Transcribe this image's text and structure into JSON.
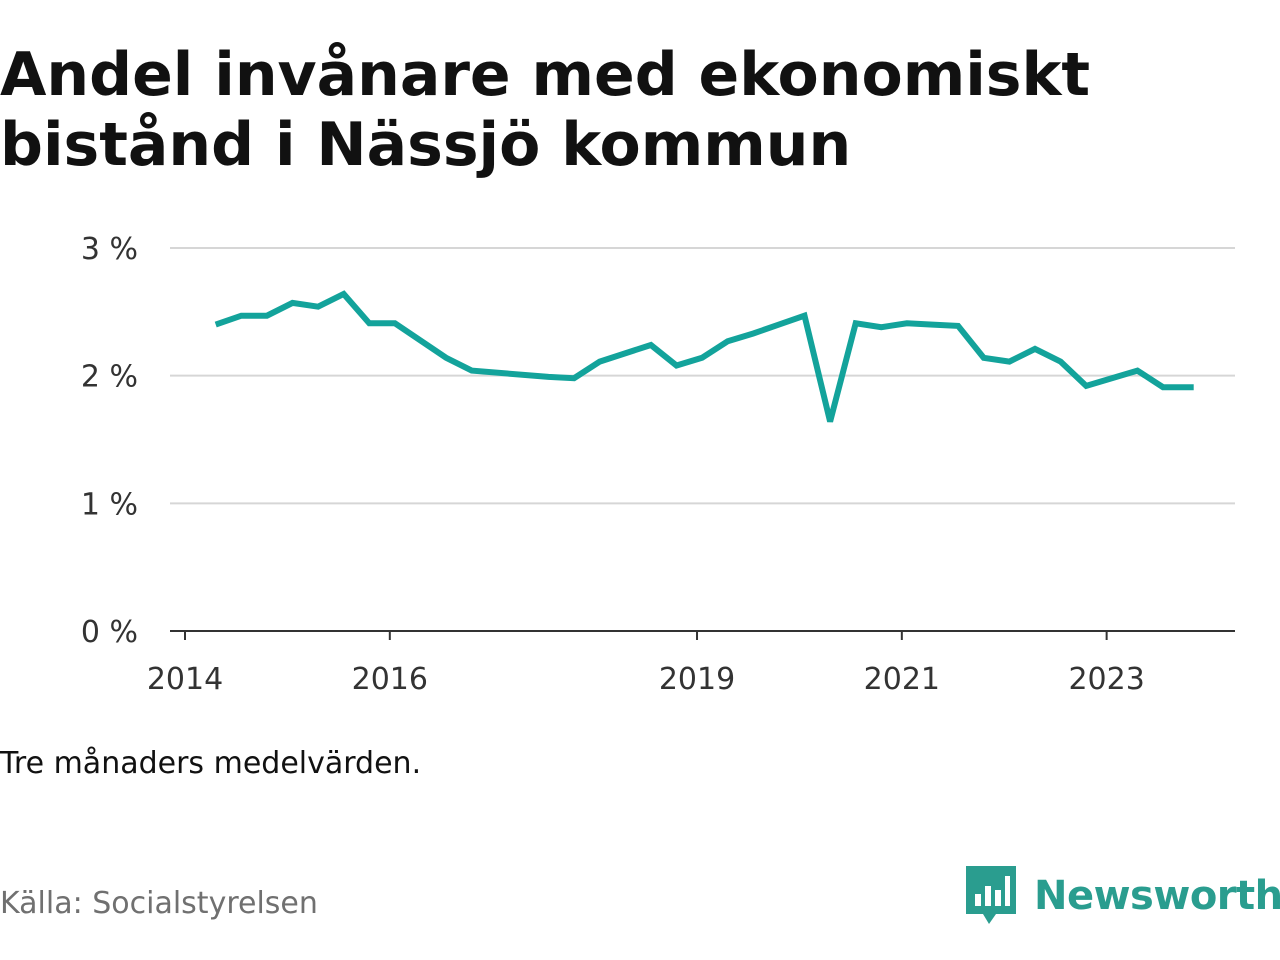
{
  "title": "Andel invånare med ekonomiskt bistånd i Nässjö kommun",
  "note": "Tre månaders medelvärden.",
  "source": "Källa: Socialstyrelsen",
  "brand": {
    "name": "Newsworthy",
    "color": "#2a9d8f"
  },
  "chart_data": {
    "type": "line",
    "title": "Andel invånare med ekonomiskt bistånd i Nässjö kommun",
    "xlabel": "",
    "ylabel": "",
    "ylim": [
      0,
      3
    ],
    "xlim": [
      2014,
      2024.4
    ],
    "grid": true,
    "line_color": "#13a39b",
    "y_ticks": [
      {
        "value": 0,
        "label": "0 %"
      },
      {
        "value": 1,
        "label": "1 %"
      },
      {
        "value": 2,
        "label": "2 %"
      },
      {
        "value": 3,
        "label": "3 %"
      }
    ],
    "x_ticks": [
      {
        "value": 2014,
        "label": "2014"
      },
      {
        "value": 2016,
        "label": "2016"
      },
      {
        "value": 2019,
        "label": "2019"
      },
      {
        "value": 2021,
        "label": "2021"
      },
      {
        "value": 2023,
        "label": "2023"
      }
    ],
    "series": [
      {
        "name": "Andel invånare med ekonomiskt bistånd",
        "x": [
          2014.3,
          2014.55,
          2014.8,
          2015.05,
          2015.3,
          2015.55,
          2015.8,
          2016.05,
          2016.55,
          2016.8,
          2017.55,
          2017.8,
          2018.05,
          2018.55,
          2018.8,
          2019.05,
          2019.3,
          2019.55,
          2019.8,
          2020.05,
          2020.3,
          2020.55,
          2020.8,
          2021.05,
          2021.3,
          2021.55,
          2021.8,
          2022.05,
          2022.3,
          2022.55,
          2022.8,
          2023.05,
          2023.3,
          2023.55,
          2023.85
        ],
        "values": [
          2.4,
          2.47,
          2.47,
          2.57,
          2.54,
          2.64,
          2.41,
          2.41,
          2.14,
          2.04,
          1.99,
          1.98,
          2.11,
          2.24,
          2.08,
          2.14,
          2.27,
          2.33,
          2.4,
          2.47,
          1.64,
          2.41,
          2.38,
          2.41,
          2.4,
          2.39,
          2.14,
          2.11,
          2.21,
          2.11,
          1.92,
          1.98,
          2.04,
          1.91,
          1.91
        ]
      }
    ]
  }
}
